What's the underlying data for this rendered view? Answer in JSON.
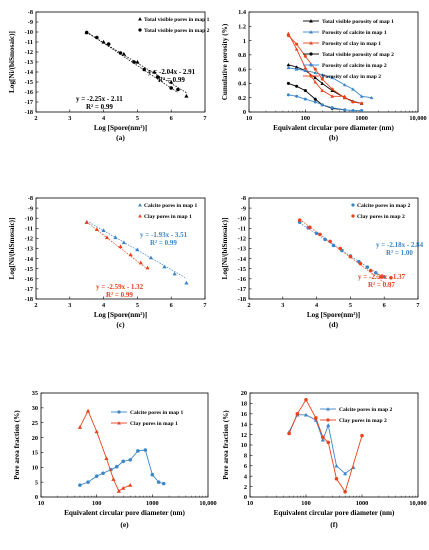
{
  "colors": {
    "black": "#000000",
    "blue": "#3c86c8",
    "red": "#e8431c"
  },
  "panels": [
    {
      "label": "(a)",
      "xlabel": "Log [Spore(nm²)]",
      "ylabel": "Log[Ni/(biSmosaic)]"
    },
    {
      "label": "(b)",
      "xlabel": "Equivalent circular pore diameter (nm)",
      "ylabel": "Cumulative porosity (%)"
    },
    {
      "label": "(c)",
      "xlabel": "Log [Spore(nm²)]",
      "ylabel": "Log[Ni/(biSmosaic)]"
    },
    {
      "label": "(d)",
      "xlabel": "Log [Spore(nm²)]",
      "ylabel": "Log[Ni/(biSmosaic)]"
    },
    {
      "label": "(e)",
      "xlabel": "Equivalent circular pore diameter (nm)",
      "ylabel": "Pore area fraction (%)"
    },
    {
      "label": "(f)",
      "xlabel": "Equivalent circular pore diameter (nm)",
      "ylabel": "Pore area fraction (%)"
    }
  ],
  "chart_data": [
    {
      "type": "scatter",
      "panel": "a",
      "xlim": [
        2,
        7
      ],
      "ylim": [
        -18,
        -8
      ],
      "xticks": [
        2,
        3,
        4,
        5,
        6,
        7
      ],
      "yticks": [
        -18,
        -17,
        -16,
        -15,
        -14,
        -13,
        -12,
        -11,
        -10,
        -9,
        -8
      ],
      "legend": [
        "Total visible pores in map 1",
        "Total visible pores in map 2"
      ],
      "series": [
        {
          "name": "Total visible pores in map 1",
          "marker": "triangle",
          "color": "#000000",
          "x": [
            3.5,
            4.0,
            4.6,
            5.0,
            5.5,
            6.0,
            6.45
          ],
          "y": [
            -10.05,
            -11.0,
            -12.2,
            -13.0,
            -14.0,
            -15.0,
            -16.4
          ]
        },
        {
          "name": "Total visible pores in map 2",
          "marker": "circle",
          "color": "#000000",
          "x": [
            3.5,
            3.8,
            4.15,
            4.5,
            4.9,
            5.2,
            5.6,
            6.0,
            6.2
          ],
          "y": [
            -10.05,
            -10.55,
            -11.2,
            -12.1,
            -13.0,
            -13.75,
            -14.5,
            -15.6,
            -15.75
          ]
        }
      ],
      "fits": [
        {
          "eq": "y = -2.04x - 2.91",
          "r2": "R² = 0.99",
          "slope": -2.04,
          "intercept": -2.91,
          "x": [
            3.5,
            6.45
          ]
        },
        {
          "eq": "y = -2.25x - 2.11",
          "r2": "R² = 0.99",
          "slope": -2.25,
          "intercept": -2.11,
          "x": [
            3.5,
            6.2
          ]
        }
      ]
    },
    {
      "type": "line",
      "panel": "b",
      "xscale": "log",
      "xlim": [
        10,
        10000
      ],
      "ylim": [
        0,
        1.4
      ],
      "xticks": [
        10,
        100,
        1000,
        10000
      ],
      "xticklabels": [
        "10",
        "100",
        "1000",
        "10,000"
      ],
      "yticks": [
        0,
        0.2,
        0.4,
        0.6,
        0.8,
        1.0,
        1.2,
        1.4
      ],
      "legend": [
        "Total visible porosity of map 1",
        "Porosity of calcite in map 1",
        "Porosity of clay in map 1",
        "Total visible porosity of map 2",
        "Porosity of calcite in map 2",
        "Porosity of clay in map 2"
      ],
      "series": [
        {
          "name": "Total visible porosity of map 1",
          "marker": "triangle",
          "color": "#000000",
          "x": [
            50,
            70,
            100,
            150,
            200,
            300,
            500,
            700,
            1000
          ],
          "y": [
            0.66,
            0.63,
            0.58,
            0.48,
            0.4,
            0.3,
            0.2,
            0.15,
            0.12
          ]
        },
        {
          "name": "Porosity of calcite in map 1",
          "marker": "triangle",
          "color": "#3c86c8",
          "x": [
            50,
            70,
            100,
            150,
            200,
            300,
            500,
            700,
            1000,
            1500
          ],
          "y": [
            0.62,
            0.6,
            0.58,
            0.55,
            0.52,
            0.48,
            0.38,
            0.32,
            0.22,
            0.2
          ]
        },
        {
          "name": "Porosity of clay in map 1",
          "marker": "triangle",
          "color": "#e8431c",
          "x": [
            50,
            70,
            100,
            150,
            200,
            300,
            500
          ],
          "y": [
            1.1,
            0.88,
            0.62,
            0.42,
            0.3,
            0.22,
            0.22
          ]
        },
        {
          "name": "Total visible porosity of map 2",
          "marker": "circle",
          "color": "#000000",
          "x": [
            50,
            70,
            100,
            150,
            200,
            300,
            500
          ],
          "y": [
            0.4,
            0.36,
            0.3,
            0.18,
            0.1,
            0.05,
            0.03
          ]
        },
        {
          "name": "Porosity of calcite in map 2",
          "marker": "circle",
          "color": "#3c86c8",
          "x": [
            50,
            70,
            100,
            150,
            200,
            300,
            500,
            700,
            1000
          ],
          "y": [
            0.24,
            0.22,
            0.18,
            0.14,
            0.1,
            0.06,
            0.03,
            0.02,
            0.02
          ]
        },
        {
          "name": "Porosity of clay in map 2",
          "marker": "circle",
          "color": "#e8431c",
          "x": [
            50,
            70,
            100,
            150,
            200,
            300,
            500,
            700,
            1000
          ],
          "y": [
            1.07,
            0.95,
            0.78,
            0.6,
            0.46,
            0.32,
            0.2,
            0.14,
            0.12
          ]
        }
      ]
    },
    {
      "type": "scatter",
      "panel": "c",
      "xlim": [
        2,
        7
      ],
      "ylim": [
        -18,
        -8
      ],
      "xticks": [
        2,
        3,
        4,
        5,
        6,
        7
      ],
      "yticks": [
        -18,
        -17,
        -16,
        -15,
        -14,
        -13,
        -12,
        -11,
        -10,
        -9,
        -8
      ],
      "legend": [
        "Calcite pores in map 1",
        "Clay pores in map 1"
      ],
      "series": [
        {
          "name": "Calcite pores in map 1",
          "marker": "triangle",
          "color": "#3c86c8",
          "x": [
            3.5,
            4.0,
            4.35,
            4.6,
            5.0,
            5.4,
            5.8,
            6.1,
            6.45
          ],
          "y": [
            -10.4,
            -11.2,
            -11.9,
            -12.4,
            -13.1,
            -13.9,
            -14.8,
            -15.5,
            -16.4
          ]
        },
        {
          "name": "Clay pores in map 1",
          "marker": "triangle",
          "color": "#e8431c",
          "x": [
            3.5,
            3.8,
            4.1,
            4.5,
            4.8,
            5.1,
            5.3
          ],
          "y": [
            -10.4,
            -11.1,
            -11.9,
            -12.8,
            -13.6,
            -14.4,
            -14.9
          ]
        }
      ],
      "fits": [
        {
          "eq": "y = -1.93x - 3.51",
          "r2": "R² = 0.99",
          "slope": -1.93,
          "intercept": -3.51,
          "x": [
            3.5,
            6.45
          ],
          "color": "#3c86c8"
        },
        {
          "eq": "y = -2.59x - 1.32",
          "r2": "R² = 0.99",
          "slope": -2.59,
          "intercept": -1.32,
          "x": [
            3.5,
            5.3
          ],
          "color": "#e8431c"
        }
      ]
    },
    {
      "type": "scatter",
      "panel": "d",
      "xlim": [
        2,
        7
      ],
      "ylim": [
        -18,
        -8
      ],
      "xticks": [
        2,
        3,
        4,
        5,
        6,
        7
      ],
      "yticks": [
        -18,
        -17,
        -16,
        -15,
        -14,
        -13,
        -12,
        -11,
        -10,
        -9,
        -8
      ],
      "legend": [
        "Calcite pores in map 2",
        "Clay pores in map 2"
      ],
      "series": [
        {
          "name": "Calcite pores in map 2",
          "marker": "circle",
          "color": "#3c86c8",
          "x": [
            3.5,
            3.75,
            4.0,
            4.25,
            4.5,
            4.75,
            5.0,
            5.25,
            5.5,
            5.75,
            6.0
          ],
          "y": [
            -10.4,
            -10.95,
            -11.5,
            -12.1,
            -12.7,
            -13.2,
            -13.75,
            -14.3,
            -14.85,
            -15.4,
            -15.8
          ]
        },
        {
          "name": "Clay pores in map 2",
          "marker": "circle",
          "color": "#e8431c",
          "x": [
            3.5,
            3.8,
            4.1,
            4.4,
            4.7,
            5.0,
            5.3,
            5.6,
            5.9,
            6.2
          ],
          "y": [
            -10.2,
            -10.9,
            -11.6,
            -12.3,
            -13.0,
            -13.8,
            -14.5,
            -15.2,
            -15.8,
            -15.9
          ]
        }
      ],
      "fits": [
        {
          "eq": "y = -2.18x - 2.84",
          "r2": "R² = 1.00",
          "slope": -2.18,
          "intercept": -2.84,
          "x": [
            3.5,
            6.0
          ],
          "color": "#3c86c8"
        },
        {
          "eq": "y = -2.50x - 1.37",
          "r2": "R² = 0.97",
          "slope": -2.5,
          "intercept": -1.37,
          "x": [
            3.5,
            6.2
          ],
          "color": "#e8431c"
        }
      ]
    },
    {
      "type": "line",
      "panel": "e",
      "xscale": "log",
      "xlim": [
        10,
        10000
      ],
      "ylim": [
        0,
        35
      ],
      "xticks": [
        10,
        100,
        1000,
        10000
      ],
      "xticklabels": [
        "10",
        "100",
        "1000",
        "10,000"
      ],
      "yticks": [
        0,
        5,
        10,
        15,
        20,
        25,
        30,
        35
      ],
      "legend": [
        "Calcite pores in map 1",
        "Clay pores in map 1"
      ],
      "series": [
        {
          "name": "Calcite pores in map 1",
          "marker": "circle",
          "color": "#3c86c8",
          "x": [
            50,
            70,
            100,
            130,
            180,
            230,
            300,
            400,
            550,
            750,
            1000,
            1300,
            1600
          ],
          "y": [
            4.0,
            5.0,
            7.0,
            8.0,
            9.2,
            10.2,
            12.0,
            12.5,
            15.5,
            15.8,
            7.5,
            5.0,
            4.5
          ]
        },
        {
          "name": "Clay pores in map 1",
          "marker": "triangle",
          "color": "#e8431c",
          "x": [
            50,
            70,
            100,
            150,
            200,
            250,
            300,
            400
          ],
          "y": [
            23.5,
            29.0,
            22.0,
            13.0,
            6.0,
            2.0,
            3.0,
            4.0
          ]
        }
      ]
    },
    {
      "type": "line",
      "panel": "f",
      "xscale": "log",
      "xlim": [
        10,
        10000
      ],
      "ylim": [
        0,
        20
      ],
      "xticks": [
        10,
        100,
        1000,
        10000
      ],
      "xticklabels": [
        "10",
        "100",
        "1000",
        "10,000"
      ],
      "yticks": [
        0,
        2,
        4,
        6,
        8,
        10,
        12,
        14,
        16,
        18,
        20
      ],
      "legend": [
        "Calcite pores in map 2",
        "Clay pores in map 2"
      ],
      "series": [
        {
          "name": "Calcite pores in map 2",
          "marker": "triangle",
          "color": "#3c86c8",
          "x": [
            50,
            70,
            100,
            150,
            200,
            250,
            350,
            500,
            700
          ],
          "y": [
            12.5,
            15.8,
            15.8,
            14.8,
            11.0,
            13.8,
            6.0,
            4.5,
            5.7
          ]
        },
        {
          "name": "Clay pores in map 2",
          "marker": "circle",
          "color": "#e8431c",
          "x": [
            50,
            70,
            100,
            150,
            200,
            250,
            350,
            500,
            1000
          ],
          "y": [
            12.2,
            16.0,
            18.7,
            15.2,
            11.5,
            10.5,
            3.5,
            1.0,
            11.8
          ]
        }
      ]
    }
  ]
}
